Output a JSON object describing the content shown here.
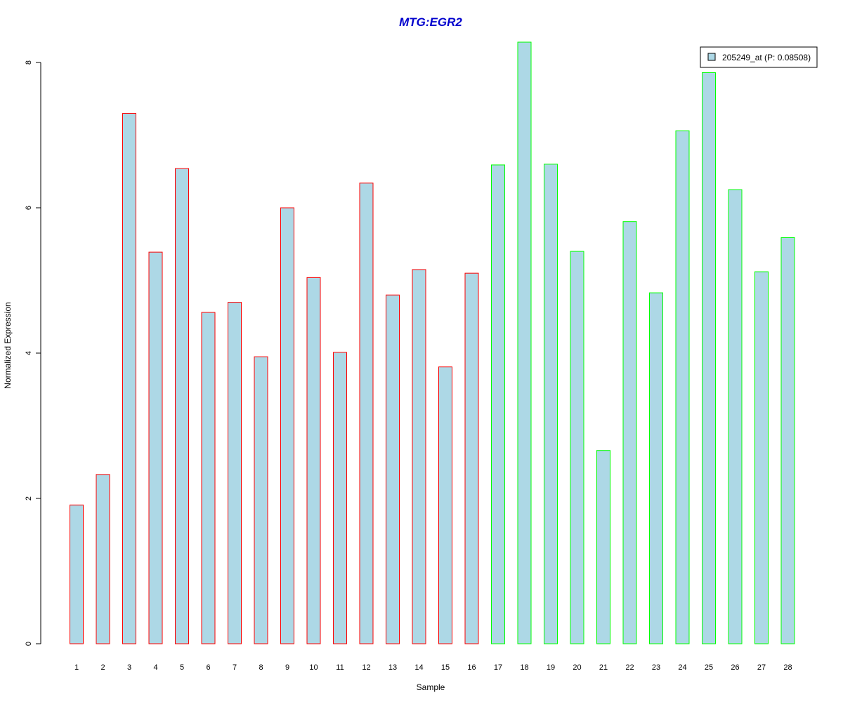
{
  "chart_data": {
    "type": "bar",
    "title": "MTG:EGR2",
    "xlabel": "Sample",
    "ylabel": "Normalized Expression",
    "ylim": [
      0,
      8.3
    ],
    "yticks": [
      0,
      2,
      4,
      6,
      8
    ],
    "categories": [
      "1",
      "2",
      "3",
      "4",
      "5",
      "6",
      "7",
      "8",
      "9",
      "10",
      "11",
      "12",
      "13",
      "14",
      "15",
      "16",
      "17",
      "18",
      "19",
      "20",
      "21",
      "22",
      "23",
      "24",
      "25",
      "26",
      "27",
      "28"
    ],
    "series": [
      {
        "name": "205249_at (P: 0.08508)",
        "values": [
          1.91,
          2.33,
          7.3,
          5.39,
          6.54,
          4.56,
          4.7,
          3.95,
          6.0,
          5.04,
          4.01,
          6.34,
          4.8,
          5.15,
          3.81,
          5.1,
          6.59,
          8.28,
          6.6,
          5.4,
          2.66,
          5.81,
          4.83,
          7.06,
          7.86,
          6.25,
          5.12,
          5.59
        ]
      }
    ],
    "bar_groups": [
      "red",
      "red",
      "red",
      "red",
      "red",
      "red",
      "red",
      "red",
      "red",
      "red",
      "red",
      "red",
      "red",
      "red",
      "red",
      "red",
      "green",
      "green",
      "green",
      "green",
      "green",
      "green",
      "green",
      "green",
      "green",
      "green",
      "green",
      "green"
    ],
    "colors": {
      "bar_fill": "#add8e6",
      "red_border": "#ff0000",
      "green_border": "#00ff00",
      "title": "#0000cd"
    },
    "legend_position": "top-right",
    "grid": false
  }
}
